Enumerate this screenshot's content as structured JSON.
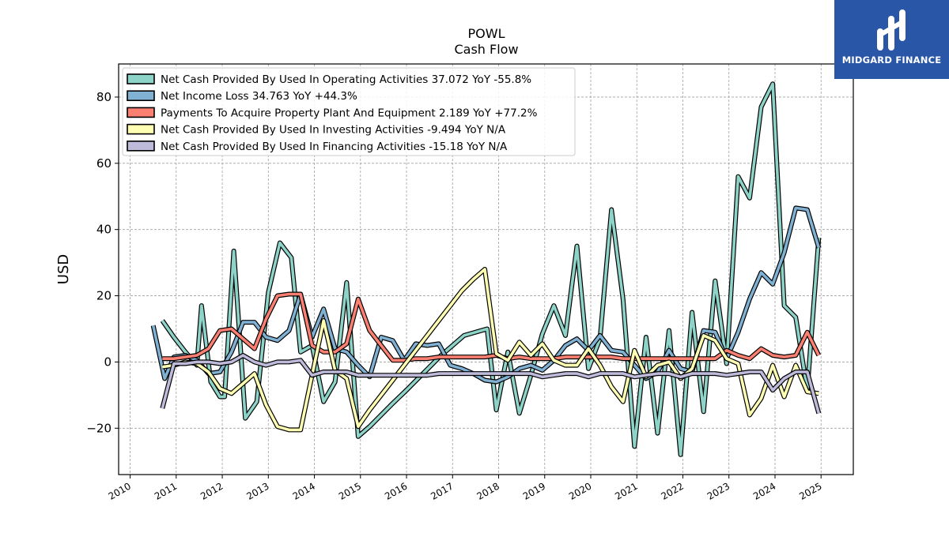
{
  "logo": {
    "text": "MIDGARD FINANCE",
    "icon": "midgard-logo-icon",
    "color": "#2a56a8"
  },
  "chart_data": {
    "type": "line",
    "title": "POWL",
    "subtitle": "Cash Flow",
    "xlabel": "",
    "ylabel": "USD",
    "ylim": [
      -34,
      90
    ],
    "xlim": [
      2009.75,
      2025.7
    ],
    "yticks": [
      -20,
      0,
      20,
      40,
      60,
      80
    ],
    "ytick_labels": [
      "−20",
      "0",
      "20",
      "40",
      "60",
      "80"
    ],
    "xticks": [
      2010,
      2011,
      2012,
      2013,
      2014,
      2015,
      2016,
      2017,
      2018,
      2019,
      2020,
      2021,
      2022,
      2023,
      2024,
      2025
    ],
    "xtick_labels": [
      "2010",
      "2011",
      "2012",
      "2013",
      "2014",
      "2015",
      "2016",
      "2017",
      "2018",
      "2019",
      "2020",
      "2021",
      "2022",
      "2023",
      "2024",
      "2025"
    ],
    "grid": true,
    "legend_position": "top-left",
    "series": [
      {
        "name": "Net Cash Provided By Used In Operating Activities  37.072 YoY -55.8%",
        "color": "#8dd3c7",
        "points": [
          [
            2010.7,
            12.5
          ],
          [
            2010.95,
            7.5
          ],
          [
            2011.2,
            3
          ],
          [
            2011.45,
            -1
          ],
          [
            2011.55,
            17
          ],
          [
            2011.75,
            -6
          ],
          [
            2011.95,
            -10.5
          ],
          [
            2012.05,
            -10.5
          ],
          [
            2012.25,
            33.5
          ],
          [
            2012.5,
            -17
          ],
          [
            2012.75,
            -12
          ],
          [
            2013.0,
            21
          ],
          [
            2013.25,
            36
          ],
          [
            2013.5,
            31.5
          ],
          [
            2013.7,
            3
          ],
          [
            2013.95,
            5
          ],
          [
            2014.2,
            -12
          ],
          [
            2014.45,
            -6
          ],
          [
            2014.7,
            24
          ],
          [
            2014.95,
            -22.5
          ],
          [
            2015.2,
            -19.5
          ],
          [
            2015.45,
            -16
          ],
          [
            2015.7,
            -12.5
          ],
          [
            2016.0,
            -8.5
          ],
          [
            2016.25,
            -5
          ],
          [
            2016.5,
            -1.5
          ],
          [
            2016.75,
            2
          ],
          [
            2017.0,
            5
          ],
          [
            2017.25,
            8
          ],
          [
            2017.75,
            10
          ],
          [
            2017.95,
            -14.5
          ],
          [
            2018.2,
            3
          ],
          [
            2018.45,
            -15.5
          ],
          [
            2018.7,
            -4
          ],
          [
            2018.95,
            8.5
          ],
          [
            2019.2,
            17
          ],
          [
            2019.45,
            8
          ],
          [
            2019.7,
            35
          ],
          [
            2019.95,
            -2
          ],
          [
            2020.2,
            7
          ],
          [
            2020.45,
            46
          ],
          [
            2020.7,
            19
          ],
          [
            2020.95,
            -25.5
          ],
          [
            2021.2,
            7.5
          ],
          [
            2021.45,
            -21.5
          ],
          [
            2021.7,
            9.5
          ],
          [
            2021.95,
            -28
          ],
          [
            2022.2,
            15
          ],
          [
            2022.45,
            -15
          ],
          [
            2022.7,
            24.5
          ],
          [
            2022.95,
            -0.5
          ],
          [
            2023.2,
            56
          ],
          [
            2023.45,
            49.5
          ],
          [
            2023.7,
            77
          ],
          [
            2023.95,
            84
          ],
          [
            2024.2,
            17
          ],
          [
            2024.45,
            13.5
          ],
          [
            2024.7,
            -8.5
          ],
          [
            2024.95,
            37.5
          ]
        ]
      },
      {
        "name": "Net Income Loss  34.763 YoY +44.3%",
        "color": "#80b1d3",
        "points": [
          [
            2010.5,
            11
          ],
          [
            2010.75,
            -5
          ],
          [
            2010.95,
            1.5
          ],
          [
            2011.2,
            2
          ],
          [
            2011.45,
            0.5
          ],
          [
            2011.7,
            -3.5
          ],
          [
            2011.95,
            -3
          ],
          [
            2012.2,
            3
          ],
          [
            2012.45,
            12
          ],
          [
            2012.7,
            12
          ],
          [
            2012.95,
            7.5
          ],
          [
            2013.2,
            6.5
          ],
          [
            2013.45,
            9.5
          ],
          [
            2013.7,
            20.5
          ],
          [
            2013.95,
            7.5
          ],
          [
            2014.2,
            16
          ],
          [
            2014.45,
            4
          ],
          [
            2014.7,
            3
          ],
          [
            2014.95,
            -1
          ],
          [
            2015.2,
            -4.5
          ],
          [
            2015.45,
            7.5
          ],
          [
            2015.7,
            6.5
          ],
          [
            2015.95,
            0.5
          ],
          [
            2016.2,
            5.5
          ],
          [
            2016.45,
            5
          ],
          [
            2016.7,
            5.5
          ],
          [
            2016.95,
            -1
          ],
          [
            2017.2,
            -2
          ],
          [
            2017.45,
            -3.5
          ],
          [
            2017.7,
            -5.5
          ],
          [
            2017.95,
            -6
          ],
          [
            2018.2,
            -4.5
          ],
          [
            2018.45,
            -2
          ],
          [
            2018.7,
            -1
          ],
          [
            2018.95,
            -2.5
          ],
          [
            2019.2,
            0.5
          ],
          [
            2019.45,
            5
          ],
          [
            2019.7,
            7
          ],
          [
            2019.95,
            3.5
          ],
          [
            2020.2,
            8
          ],
          [
            2020.45,
            3.5
          ],
          [
            2020.7,
            3
          ],
          [
            2020.95,
            -1
          ],
          [
            2021.2,
            -5
          ],
          [
            2021.45,
            -3
          ],
          [
            2021.7,
            3.5
          ],
          [
            2021.95,
            -2
          ],
          [
            2022.2,
            -3
          ],
          [
            2022.45,
            9.5
          ],
          [
            2022.7,
            9
          ],
          [
            2022.95,
            1
          ],
          [
            2023.2,
            9
          ],
          [
            2023.45,
            19
          ],
          [
            2023.7,
            27
          ],
          [
            2023.95,
            23.5
          ],
          [
            2024.2,
            33
          ],
          [
            2024.45,
            46.5
          ],
          [
            2024.7,
            46
          ],
          [
            2024.95,
            34.5
          ]
        ]
      },
      {
        "name": "Payments To Acquire Property Plant And Equipment  2.189 YoY +77.2%",
        "color": "#fb8072",
        "points": [
          [
            2010.7,
            1
          ],
          [
            2010.95,
            1
          ],
          [
            2011.2,
            1.5
          ],
          [
            2011.45,
            2
          ],
          [
            2011.7,
            4
          ],
          [
            2011.95,
            9.5
          ],
          [
            2012.2,
            10
          ],
          [
            2012.45,
            7
          ],
          [
            2012.7,
            4
          ],
          [
            2012.95,
            13
          ],
          [
            2013.2,
            20
          ],
          [
            2013.45,
            20.5
          ],
          [
            2013.7,
            20.5
          ],
          [
            2013.95,
            5
          ],
          [
            2014.2,
            3
          ],
          [
            2014.45,
            3
          ],
          [
            2014.7,
            5.5
          ],
          [
            2014.95,
            19
          ],
          [
            2015.2,
            9.5
          ],
          [
            2015.45,
            5
          ],
          [
            2015.7,
            0.5
          ],
          [
            2015.95,
            0.5
          ],
          [
            2016.2,
            1
          ],
          [
            2016.45,
            1
          ],
          [
            2016.7,
            1.5
          ],
          [
            2016.95,
            1.5
          ],
          [
            2017.2,
            1.5
          ],
          [
            2017.45,
            1.5
          ],
          [
            2017.7,
            1.5
          ],
          [
            2017.95,
            2
          ],
          [
            2018.2,
            1
          ],
          [
            2018.45,
            1.5
          ],
          [
            2018.7,
            1
          ],
          [
            2018.95,
            1
          ],
          [
            2019.2,
            1
          ],
          [
            2019.45,
            1.5
          ],
          [
            2019.7,
            1.5
          ],
          [
            2019.95,
            1.5
          ],
          [
            2020.2,
            1.5
          ],
          [
            2020.45,
            1.5
          ],
          [
            2020.7,
            1
          ],
          [
            2020.95,
            1
          ],
          [
            2021.2,
            1
          ],
          [
            2021.45,
            1
          ],
          [
            2021.7,
            1
          ],
          [
            2021.95,
            1
          ],
          [
            2022.2,
            1
          ],
          [
            2022.45,
            1
          ],
          [
            2022.7,
            1
          ],
          [
            2022.95,
            3.5
          ],
          [
            2023.2,
            2
          ],
          [
            2023.45,
            1
          ],
          [
            2023.7,
            4
          ],
          [
            2023.95,
            2
          ],
          [
            2024.2,
            1.5
          ],
          [
            2024.45,
            2
          ],
          [
            2024.7,
            9
          ],
          [
            2024.95,
            2
          ]
        ]
      },
      {
        "name": "Net Cash Provided By Used In Investing Activities  -9.494 YoY N/A",
        "color": "#ffffb3",
        "points": [
          [
            2010.7,
            -1.5
          ],
          [
            2010.95,
            -1
          ],
          [
            2011.2,
            0
          ],
          [
            2011.45,
            -0.5
          ],
          [
            2011.7,
            -3
          ],
          [
            2011.95,
            -8
          ],
          [
            2012.2,
            -9.5
          ],
          [
            2012.45,
            -6.5
          ],
          [
            2012.7,
            -3.5
          ],
          [
            2012.95,
            -13
          ],
          [
            2013.2,
            -19.5
          ],
          [
            2013.45,
            -20.5
          ],
          [
            2013.7,
            -20.5
          ],
          [
            2013.95,
            -4
          ],
          [
            2014.2,
            12.5
          ],
          [
            2014.45,
            -2.5
          ],
          [
            2014.7,
            -5
          ],
          [
            2014.95,
            -19.5
          ],
          [
            2015.2,
            -14.5
          ],
          [
            2015.45,
            -10
          ],
          [
            2015.7,
            -5.5
          ],
          [
            2015.95,
            -1
          ],
          [
            2016.2,
            3.5
          ],
          [
            2016.45,
            8
          ],
          [
            2016.7,
            12.5
          ],
          [
            2016.95,
            17
          ],
          [
            2017.2,
            21.5
          ],
          [
            2017.45,
            25
          ],
          [
            2017.7,
            28
          ],
          [
            2017.95,
            2.5
          ],
          [
            2018.2,
            0.5
          ],
          [
            2018.45,
            6
          ],
          [
            2018.7,
            2
          ],
          [
            2018.95,
            5.5
          ],
          [
            2019.2,
            0.5
          ],
          [
            2019.45,
            -1
          ],
          [
            2019.7,
            -1
          ],
          [
            2019.95,
            4
          ],
          [
            2020.2,
            -1
          ],
          [
            2020.45,
            -7.5
          ],
          [
            2020.7,
            -12
          ],
          [
            2020.95,
            3.5
          ],
          [
            2021.2,
            -4.5
          ],
          [
            2021.45,
            -1
          ],
          [
            2021.7,
            0
          ],
          [
            2021.95,
            -5
          ],
          [
            2022.2,
            -2
          ],
          [
            2022.45,
            8
          ],
          [
            2022.7,
            6.5
          ],
          [
            2022.95,
            1
          ],
          [
            2023.2,
            -0.5
          ],
          [
            2023.45,
            -16
          ],
          [
            2023.7,
            -11
          ],
          [
            2023.95,
            -1
          ],
          [
            2024.2,
            -10.5
          ],
          [
            2024.45,
            -1
          ],
          [
            2024.7,
            -9
          ],
          [
            2024.95,
            -9.5
          ]
        ]
      },
      {
        "name": "Net Cash Provided By Used In Financing Activities  -15.18 YoY N/A",
        "color": "#bebada",
        "points": [
          [
            2010.7,
            -14
          ],
          [
            2010.95,
            -0.5
          ],
          [
            2011.2,
            -0.5
          ],
          [
            2011.45,
            0
          ],
          [
            2011.7,
            0
          ],
          [
            2011.95,
            -0.5
          ],
          [
            2012.2,
            0
          ],
          [
            2012.45,
            2
          ],
          [
            2012.7,
            0
          ],
          [
            2012.95,
            -1
          ],
          [
            2013.2,
            0
          ],
          [
            2013.45,
            0
          ],
          [
            2013.7,
            0.5
          ],
          [
            2013.95,
            -4
          ],
          [
            2014.2,
            -3
          ],
          [
            2014.45,
            -3
          ],
          [
            2014.7,
            -3
          ],
          [
            2014.95,
            -4
          ],
          [
            2015.2,
            -4
          ],
          [
            2015.45,
            -4
          ],
          [
            2015.7,
            -4
          ],
          [
            2015.95,
            -4
          ],
          [
            2016.2,
            -4
          ],
          [
            2016.45,
            -4
          ],
          [
            2016.7,
            -3.5
          ],
          [
            2016.95,
            -3.5
          ],
          [
            2017.2,
            -3.5
          ],
          [
            2017.45,
            -3.5
          ],
          [
            2017.7,
            -3.5
          ],
          [
            2017.95,
            -3.5
          ],
          [
            2018.2,
            -3.5
          ],
          [
            2018.45,
            -3.5
          ],
          [
            2018.7,
            -3.5
          ],
          [
            2018.95,
            -4.5
          ],
          [
            2019.2,
            -4
          ],
          [
            2019.45,
            -3.5
          ],
          [
            2019.7,
            -3.5
          ],
          [
            2019.95,
            -4.5
          ],
          [
            2020.2,
            -3.5
          ],
          [
            2020.45,
            -3.5
          ],
          [
            2020.7,
            -3.5
          ],
          [
            2020.95,
            -4.5
          ],
          [
            2021.2,
            -4
          ],
          [
            2021.45,
            -3.5
          ],
          [
            2021.7,
            -3.5
          ],
          [
            2021.95,
            -4.5
          ],
          [
            2022.2,
            -3.5
          ],
          [
            2022.45,
            -3.5
          ],
          [
            2022.7,
            -3.5
          ],
          [
            2022.95,
            -4
          ],
          [
            2023.2,
            -3.5
          ],
          [
            2023.45,
            -3
          ],
          [
            2023.7,
            -3
          ],
          [
            2023.95,
            -8.5
          ],
          [
            2024.2,
            -5
          ],
          [
            2024.45,
            -3
          ],
          [
            2024.7,
            -3
          ],
          [
            2024.95,
            -15.5
          ]
        ]
      }
    ]
  }
}
